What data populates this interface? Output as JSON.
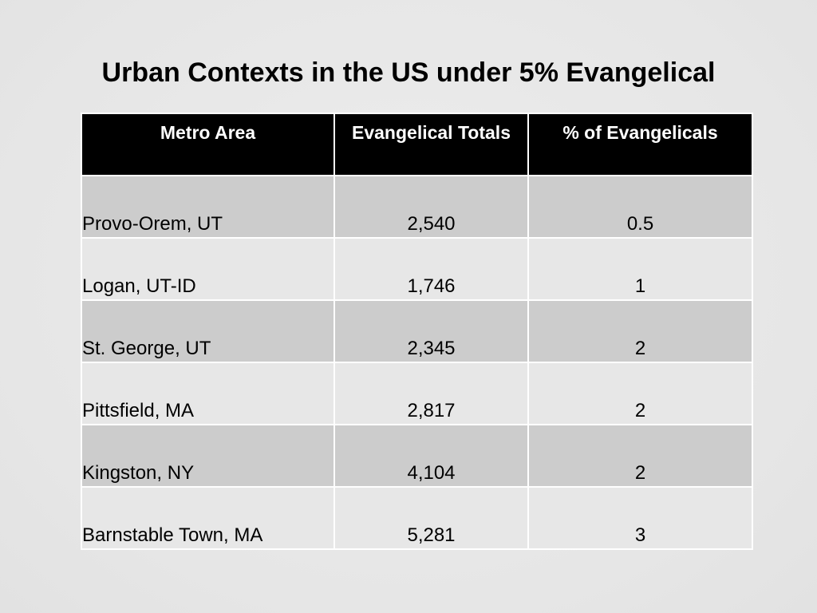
{
  "slide": {
    "title": "Urban Contexts in the US under 5% Evangelical"
  },
  "table": {
    "headers": [
      "Metro Area",
      "Evangelical Totals",
      "% of Evangelicals"
    ],
    "rows": [
      [
        "Provo-Orem, UT",
        "2,540",
        "0.5"
      ],
      [
        "Logan, UT-ID",
        "1,746",
        "1"
      ],
      [
        "St. George, UT",
        "2,345",
        "2"
      ],
      [
        "Pittsfield, MA",
        "2,817",
        "2"
      ],
      [
        "Kingston, NY",
        "4,104",
        "2"
      ],
      [
        "Barnstable Town, MA",
        "5,281",
        "3"
      ]
    ]
  },
  "colors": {
    "header_bg": "#000000",
    "header_text": "#ffffff",
    "row_dark": "#cccccc",
    "row_light": "#e7e7e7",
    "background": "#e8e8e8"
  }
}
